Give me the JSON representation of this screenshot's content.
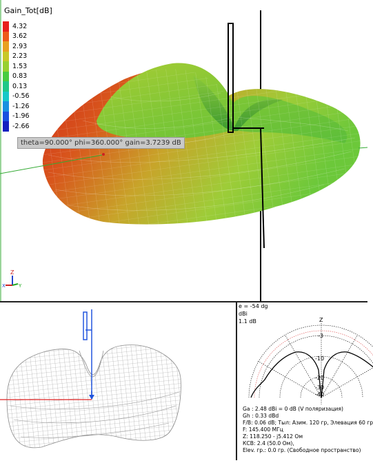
{
  "scale": {
    "title": "Gain_Tot[dB]",
    "entries": [
      {
        "value": "4.32",
        "color": "#e8201c"
      },
      {
        "value": "3.62",
        "color": "#ee5a1a"
      },
      {
        "value": "2.93",
        "color": "#e8a020"
      },
      {
        "value": "2.23",
        "color": "#c8c828"
      },
      {
        "value": "1.53",
        "color": "#98d030"
      },
      {
        "value": "0.83",
        "color": "#48cc40"
      },
      {
        "value": "0.13",
        "color": "#20c888"
      },
      {
        "value": "-0.56",
        "color": "#18c8c8"
      },
      {
        "value": "-1.26",
        "color": "#1890e0"
      },
      {
        "value": "-1.96",
        "color": "#1850e0"
      },
      {
        "value": "-2.66",
        "color": "#1420c0"
      }
    ]
  },
  "probe_label": "theta=90.000° phi=360.000° gain=3.7239 dB",
  "axes": {
    "z": "Z",
    "x": "X",
    "y": "Y"
  },
  "info_top": [
    "e = -54 dg",
    "dBi",
    "1.1 dB"
  ],
  "polar_labels": {
    "z": "Z",
    "m3": "-3",
    "m10": "-10",
    "m20": "-20",
    "m30": "-30",
    "m40": "-40"
  },
  "info_bottom": [
    "Ga : 2.48 dBi = 0 dB  (V поляризация)",
    "Gh : 0.33 dBd",
    "F/B: 0.06 dB; Тыл: Азим. 120 гр, Элевация 60 гр",
    "F: 145.400 МГц",
    "Z: 118.250 - j5.412 Ом",
    "КСВ: 2.4 (50.0 Ом),",
    "Elev. гр.: 0.0 гр. (Свободное пространство)"
  ]
}
